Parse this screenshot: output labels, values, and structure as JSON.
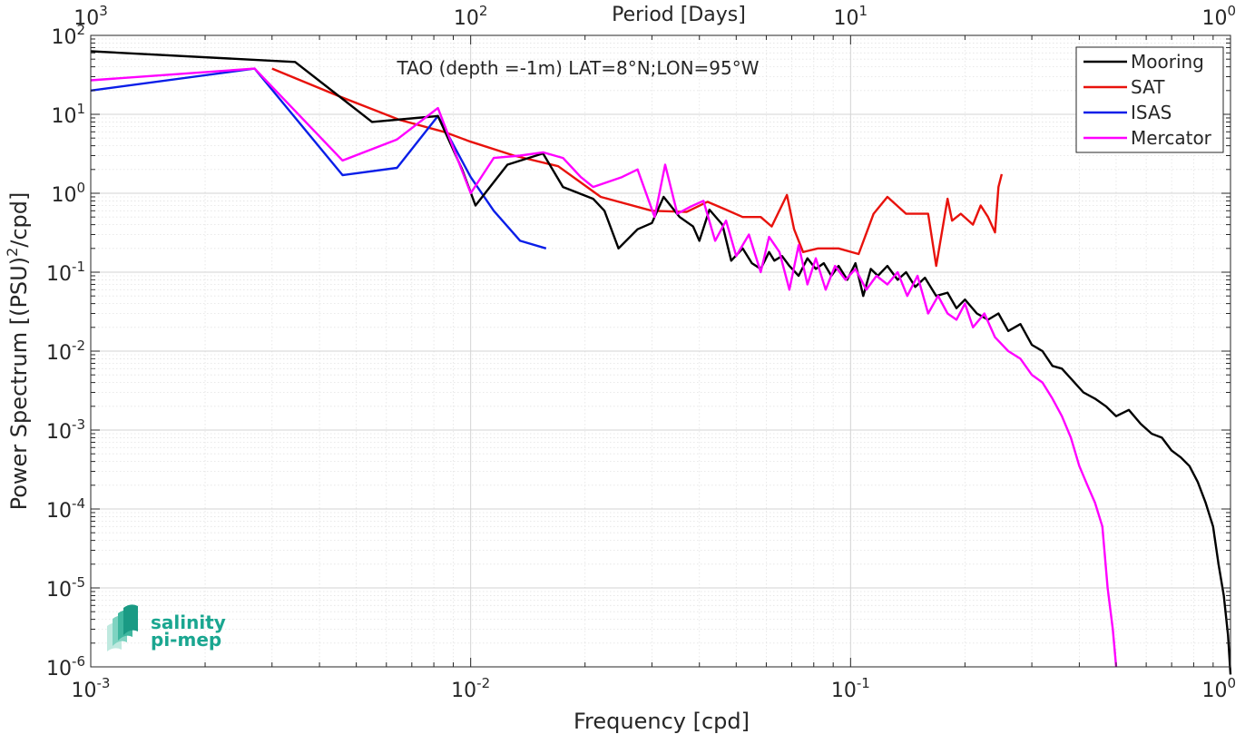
{
  "chart_data": {
    "type": "line",
    "title": "TAO (depth =-1m) LAT=8°N;LON=95°W",
    "xlabel": "Frequency [cpd]",
    "ylabel_main": "Power Spectrum [(PSU)",
    "ylabel_sup": "2",
    "ylabel_tail": "/cpd]",
    "top_xlabel": "Period [Days]",
    "x_scale": "log",
    "y_scale": "log",
    "xlim": [
      0.001,
      1
    ],
    "ylim": [
      1e-06,
      100
    ],
    "grid": true,
    "legend_position": "top-right",
    "x_ticks": [
      {
        "value": 0.001,
        "base": "10",
        "exp": "-3"
      },
      {
        "value": 0.01,
        "base": "10",
        "exp": "-2"
      },
      {
        "value": 0.1,
        "base": "10",
        "exp": "-1"
      },
      {
        "value": 1,
        "base": "10",
        "exp": "0"
      }
    ],
    "y_ticks": [
      {
        "value": 100,
        "base": "10",
        "exp": "2"
      },
      {
        "value": 10,
        "base": "10",
        "exp": "1"
      },
      {
        "value": 1,
        "base": "10",
        "exp": "0"
      },
      {
        "value": 0.1,
        "base": "10",
        "exp": "-1"
      },
      {
        "value": 0.01,
        "base": "10",
        "exp": "-2"
      },
      {
        "value": 0.001,
        "base": "10",
        "exp": "-3"
      },
      {
        "value": 0.0001,
        "base": "10",
        "exp": "-4"
      },
      {
        "value": 1e-05,
        "base": "10",
        "exp": "-5"
      },
      {
        "value": 1e-06,
        "base": "10",
        "exp": "-6"
      }
    ],
    "top_ticks": [
      {
        "value": 0.001,
        "base": "10",
        "exp": "3"
      },
      {
        "value": 0.01,
        "base": "10",
        "exp": "2"
      },
      {
        "value": 0.1,
        "base": "10",
        "exp": "1"
      },
      {
        "value": 1,
        "base": "10",
        "exp": "0"
      }
    ],
    "series": [
      {
        "name": "Mooring",
        "color": "#000000",
        "points": [
          [
            0.001,
            63
          ],
          [
            0.00345,
            46
          ],
          [
            0.0055,
            8
          ],
          [
            0.0072,
            9
          ],
          [
            0.0082,
            9.5
          ],
          [
            0.0095,
            2
          ],
          [
            0.0103,
            0.7
          ],
          [
            0.0125,
            2.3
          ],
          [
            0.0155,
            3.2
          ],
          [
            0.0175,
            1.2
          ],
          [
            0.021,
            0.85
          ],
          [
            0.0225,
            0.6
          ],
          [
            0.0245,
            0.2
          ],
          [
            0.0275,
            0.35
          ],
          [
            0.03,
            0.42
          ],
          [
            0.0322,
            0.9
          ],
          [
            0.0355,
            0.5
          ],
          [
            0.0385,
            0.38
          ],
          [
            0.04,
            0.25
          ],
          [
            0.0425,
            0.62
          ],
          [
            0.046,
            0.4
          ],
          [
            0.0485,
            0.14
          ],
          [
            0.052,
            0.2
          ],
          [
            0.055,
            0.13
          ],
          [
            0.058,
            0.11
          ],
          [
            0.061,
            0.18
          ],
          [
            0.063,
            0.14
          ],
          [
            0.066,
            0.16
          ],
          [
            0.069,
            0.12
          ],
          [
            0.073,
            0.09
          ],
          [
            0.077,
            0.15
          ],
          [
            0.081,
            0.11
          ],
          [
            0.085,
            0.13
          ],
          [
            0.089,
            0.09
          ],
          [
            0.093,
            0.12
          ],
          [
            0.098,
            0.08
          ],
          [
            0.103,
            0.13
          ],
          [
            0.108,
            0.05
          ],
          [
            0.113,
            0.11
          ],
          [
            0.118,
            0.09
          ],
          [
            0.125,
            0.12
          ],
          [
            0.133,
            0.08
          ],
          [
            0.14,
            0.1
          ],
          [
            0.148,
            0.065
          ],
          [
            0.157,
            0.085
          ],
          [
            0.168,
            0.05
          ],
          [
            0.18,
            0.055
          ],
          [
            0.19,
            0.035
          ],
          [
            0.2,
            0.045
          ],
          [
            0.215,
            0.03
          ],
          [
            0.23,
            0.025
          ],
          [
            0.245,
            0.03
          ],
          [
            0.26,
            0.018
          ],
          [
            0.28,
            0.022
          ],
          [
            0.3,
            0.012
          ],
          [
            0.32,
            0.01
          ],
          [
            0.34,
            0.0065
          ],
          [
            0.36,
            0.006
          ],
          [
            0.38,
            0.0045
          ],
          [
            0.41,
            0.003
          ],
          [
            0.44,
            0.0025
          ],
          [
            0.47,
            0.002
          ],
          [
            0.5,
            0.0015
          ],
          [
            0.54,
            0.0018
          ],
          [
            0.58,
            0.0012
          ],
          [
            0.62,
            0.0009
          ],
          [
            0.66,
            0.0008
          ],
          [
            0.7,
            0.00055
          ],
          [
            0.74,
            0.00045
          ],
          [
            0.78,
            0.00035
          ],
          [
            0.82,
            0.00022
          ],
          [
            0.86,
            0.00012
          ],
          [
            0.9,
            6e-05
          ],
          [
            0.93,
            2e-05
          ],
          [
            0.96,
            8e-06
          ],
          [
            0.985,
            2.5e-06
          ],
          [
            1.0,
            8e-07
          ]
        ]
      },
      {
        "name": "SAT",
        "color": "#e8120c",
        "points": [
          [
            0.003,
            38
          ],
          [
            0.0045,
            17
          ],
          [
            0.0065,
            8.5
          ],
          [
            0.0085,
            6
          ],
          [
            0.01,
            4.5
          ],
          [
            0.013,
            3
          ],
          [
            0.017,
            2.2
          ],
          [
            0.022,
            0.9
          ],
          [
            0.03,
            0.6
          ],
          [
            0.037,
            0.58
          ],
          [
            0.042,
            0.78
          ],
          [
            0.047,
            0.62
          ],
          [
            0.052,
            0.5
          ],
          [
            0.058,
            0.5
          ],
          [
            0.062,
            0.38
          ],
          [
            0.068,
            0.95
          ],
          [
            0.071,
            0.35
          ],
          [
            0.075,
            0.18
          ],
          [
            0.082,
            0.2
          ],
          [
            0.093,
            0.2
          ],
          [
            0.105,
            0.17
          ],
          [
            0.115,
            0.55
          ],
          [
            0.125,
            0.9
          ],
          [
            0.14,
            0.55
          ],
          [
            0.16,
            0.55
          ],
          [
            0.168,
            0.12
          ],
          [
            0.18,
            0.85
          ],
          [
            0.185,
            0.45
          ],
          [
            0.195,
            0.55
          ],
          [
            0.21,
            0.4
          ],
          [
            0.22,
            0.7
          ],
          [
            0.23,
            0.5
          ],
          [
            0.24,
            0.32
          ],
          [
            0.245,
            1.2
          ],
          [
            0.25,
            1.75
          ]
        ]
      },
      {
        "name": "ISAS",
        "color": "#0a1ee8",
        "points": [
          [
            0.001,
            20
          ],
          [
            0.0027,
            38
          ],
          [
            0.0046,
            1.7
          ],
          [
            0.0064,
            2.1
          ],
          [
            0.0082,
            9.5
          ],
          [
            0.01,
            1.6
          ],
          [
            0.0115,
            0.6
          ],
          [
            0.0135,
            0.25
          ],
          [
            0.0158,
            0.2
          ]
        ]
      },
      {
        "name": "Mercator",
        "color": "#ff00ff",
        "points": [
          [
            0.001,
            27
          ],
          [
            0.0027,
            38
          ],
          [
            0.0046,
            2.6
          ],
          [
            0.0064,
            4.8
          ],
          [
            0.0082,
            12
          ],
          [
            0.01,
            1
          ],
          [
            0.0115,
            2.8
          ],
          [
            0.0135,
            3
          ],
          [
            0.0155,
            3.3
          ],
          [
            0.0175,
            2.8
          ],
          [
            0.0195,
            1.6
          ],
          [
            0.021,
            1.2
          ],
          [
            0.025,
            1.6
          ],
          [
            0.0275,
            2
          ],
          [
            0.0305,
            0.5
          ],
          [
            0.0325,
            2.3
          ],
          [
            0.035,
            0.55
          ],
          [
            0.038,
            0.68
          ],
          [
            0.041,
            0.8
          ],
          [
            0.044,
            0.25
          ],
          [
            0.047,
            0.45
          ],
          [
            0.05,
            0.16
          ],
          [
            0.054,
            0.3
          ],
          [
            0.058,
            0.1
          ],
          [
            0.061,
            0.28
          ],
          [
            0.065,
            0.18
          ],
          [
            0.069,
            0.06
          ],
          [
            0.073,
            0.22
          ],
          [
            0.077,
            0.07
          ],
          [
            0.081,
            0.15
          ],
          [
            0.086,
            0.06
          ],
          [
            0.091,
            0.12
          ],
          [
            0.097,
            0.08
          ],
          [
            0.103,
            0.11
          ],
          [
            0.11,
            0.06
          ],
          [
            0.117,
            0.09
          ],
          [
            0.125,
            0.07
          ],
          [
            0.133,
            0.1
          ],
          [
            0.141,
            0.05
          ],
          [
            0.15,
            0.09
          ],
          [
            0.16,
            0.03
          ],
          [
            0.17,
            0.05
          ],
          [
            0.18,
            0.03
          ],
          [
            0.19,
            0.025
          ],
          [
            0.2,
            0.04
          ],
          [
            0.21,
            0.02
          ],
          [
            0.225,
            0.03
          ],
          [
            0.24,
            0.015
          ],
          [
            0.26,
            0.01
          ],
          [
            0.28,
            0.008
          ],
          [
            0.3,
            0.005
          ],
          [
            0.32,
            0.004
          ],
          [
            0.34,
            0.0025
          ],
          [
            0.36,
            0.0015
          ],
          [
            0.38,
            0.0008
          ],
          [
            0.4,
            0.00035
          ],
          [
            0.42,
            0.0002
          ],
          [
            0.44,
            0.00012
          ],
          [
            0.46,
            6e-05
          ],
          [
            0.475,
            1e-05
          ],
          [
            0.49,
            3e-06
          ],
          [
            0.5,
            1e-06
          ]
        ]
      }
    ]
  },
  "logo": {
    "line1": "salinity",
    "line2": "pi-mep",
    "color": "#1aa690"
  }
}
